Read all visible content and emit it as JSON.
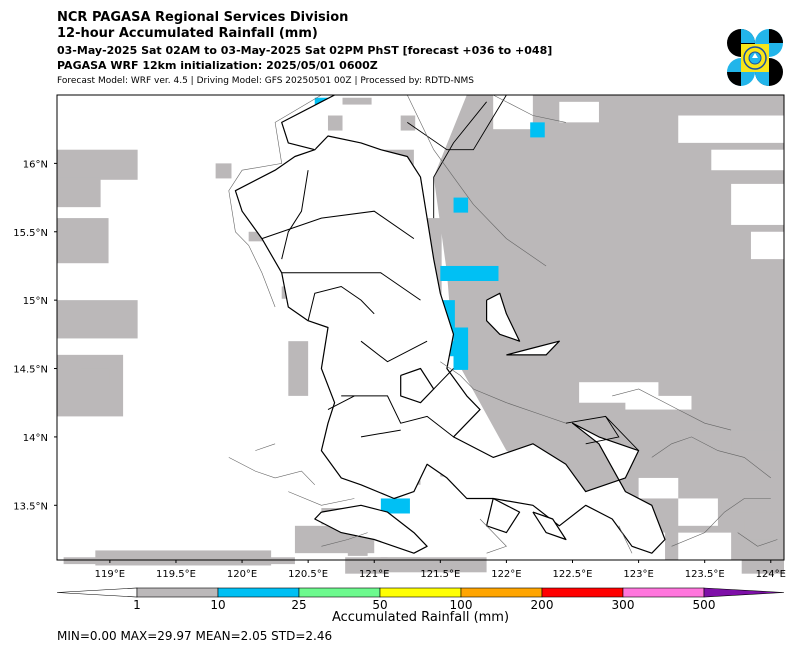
{
  "header": {
    "title": "NCR PAGASA Regional Services Division",
    "subtitle": "12-hour Accumulated Rainfall (mm)",
    "period": "03-May-2025 Sat 02AM to 03-May-2025 Sat 02PM PhST [forecast +036 to +048]",
    "init": "PAGASA WRF 12km initialization: 2025/05/01 0600Z",
    "model_info": "Forecast Model: WRF ver. 4.5 | Driving Model: GFS 20250501 00Z | Processed by: RDTD-NMS"
  },
  "logo": {
    "icon": "pagasa-logo-icon",
    "colors": [
      "#000000",
      "#22b5ea",
      "#f7e51a",
      "#1a4fa3"
    ]
  },
  "chart_data": {
    "type": "heatmap",
    "title": "12-hour Accumulated Rainfall (mm)",
    "xlim": [
      118.6,
      124.1
    ],
    "ylim": [
      13.1,
      16.5
    ],
    "x_ticks": [
      "119°E",
      "119.5°E",
      "120°E",
      "120.5°E",
      "121°E",
      "121.5°E",
      "122°E",
      "122.5°E",
      "123°E",
      "123.5°E",
      "124°E"
    ],
    "x_tick_values": [
      119,
      119.5,
      120,
      120.5,
      121,
      121.5,
      122,
      122.5,
      123,
      123.5,
      124
    ],
    "y_ticks": [
      "16°N",
      "15.5°N",
      "15°N",
      "14.5°N",
      "14°N",
      "13.5°N"
    ],
    "y_tick_values": [
      16,
      15.5,
      15,
      14.5,
      14,
      13.5
    ],
    "colorbar": {
      "label": "Accumulated Rainfall (mm)",
      "levels": [
        "1",
        "10",
        "25",
        "50",
        "100",
        "200",
        "300",
        "500"
      ],
      "colors": [
        "#ffffff",
        "#bbb8b9",
        "#00c0f4",
        "#6dfa8e",
        "#ffff04",
        "#ffa501",
        "#ff0000",
        "#ff76dd",
        "#7e0fa8"
      ]
    },
    "cell_deg": 0.11,
    "cells_light": [
      [
        118.6,
        16.1,
        0.61,
        0.22
      ],
      [
        118.6,
        15.9,
        0.33,
        0.22
      ],
      [
        118.6,
        15.6,
        0.39,
        0.33
      ],
      [
        118.6,
        15.0,
        0.61,
        0.28
      ],
      [
        118.6,
        14.6,
        0.5,
        0.45
      ],
      [
        118.78,
        14.5,
        0.22,
        0.11
      ],
      [
        118.65,
        13.12,
        1.75,
        0.05
      ],
      [
        118.89,
        13.17,
        1.33,
        0.11
      ],
      [
        119.8,
        16.0,
        0.12,
        0.11
      ],
      [
        120.05,
        15.5,
        0.22,
        0.07
      ],
      [
        120.3,
        15.1,
        0.08,
        0.09
      ],
      [
        120.35,
        14.7,
        0.15,
        0.4
      ],
      [
        120.9,
        16.1,
        0.12,
        0.11
      ],
      [
        121.0,
        16.0,
        0.1,
        0.11
      ],
      [
        121.05,
        16.1,
        0.25,
        0.11
      ],
      [
        121.05,
        15.9,
        0.22,
        0.11
      ],
      [
        121.2,
        16.35,
        0.11,
        0.11
      ],
      [
        120.65,
        16.35,
        0.11,
        0.11
      ],
      [
        120.76,
        16.48,
        0.22,
        0.05
      ],
      [
        121.4,
        15.6,
        0.11,
        0.8
      ],
      [
        121.4,
        14.75,
        0.11,
        0.3
      ],
      [
        121.5,
        13.85,
        0.25,
        0.14
      ],
      [
        121.2,
        13.75,
        0.15,
        0.1
      ],
      [
        120.6,
        13.48,
        0.3,
        0.12
      ],
      [
        120.4,
        13.35,
        0.6,
        0.2
      ],
      [
        120.78,
        13.12,
        0.32,
        0.12
      ],
      [
        120.95,
        13.12,
        0.4,
        0.08
      ],
      [
        121.05,
        13.12,
        0.8,
        0.11
      ],
      [
        120.8,
        13.25,
        0.15,
        0.12
      ],
      [
        123.47,
        14.05,
        0.61,
        0.1
      ],
      [
        123.7,
        14.0,
        0.4,
        0.1
      ],
      [
        123.85,
        13.9,
        0.25,
        0.1
      ],
      [
        123.63,
        13.55,
        0.47,
        0.1
      ],
      [
        123.8,
        13.4,
        0.3,
        0.15
      ],
      [
        123.78,
        13.12,
        0.32,
        0.12
      ]
    ],
    "cells_blue": [
      [
        120.55,
        16.48,
        0.11,
        0.05
      ],
      [
        122.18,
        16.3,
        0.11,
        0.11
      ],
      [
        121.2,
        15.95,
        0.1,
        0.11
      ],
      [
        121.6,
        15.75,
        0.11,
        0.11
      ],
      [
        121.5,
        15.25,
        0.44,
        0.11
      ],
      [
        121.5,
        15.0,
        0.11,
        0.25
      ],
      [
        121.6,
        14.8,
        0.11,
        0.3
      ],
      [
        121.5,
        14.7,
        0.11,
        0.11
      ],
      [
        121.6,
        14.6,
        0.11,
        0.11
      ],
      [
        121.6,
        13.75,
        0.11,
        0.11
      ],
      [
        122.05,
        13.65,
        0.11,
        0.11
      ],
      [
        121.05,
        13.55,
        0.22,
        0.11
      ]
    ],
    "cells_green": [
      [
        121.17,
        15.98,
        0.11,
        0.11
      ]
    ],
    "land_outlines": [
      [
        [
          121.05,
          16.1
        ],
        [
          121.25,
          16.05
        ],
        [
          121.35,
          15.9
        ],
        [
          121.4,
          15.6
        ],
        [
          121.45,
          15.3
        ],
        [
          121.5,
          15.05
        ],
        [
          121.55,
          14.9
        ],
        [
          121.6,
          14.75
        ],
        [
          121.55,
          14.5
        ],
        [
          121.7,
          14.3
        ],
        [
          121.8,
          14.2
        ],
        [
          121.6,
          14.0
        ],
        [
          121.9,
          13.85
        ],
        [
          122.2,
          13.95
        ],
        [
          122.45,
          13.8
        ],
        [
          122.6,
          13.6
        ],
        [
          122.9,
          13.7
        ],
        [
          123.0,
          13.9
        ],
        [
          122.7,
          14.0
        ],
        [
          122.5,
          14.1
        ],
        [
          122.7,
          13.95
        ],
        [
          122.9,
          13.6
        ],
        [
          123.1,
          13.5
        ],
        [
          123.2,
          13.25
        ],
        [
          123.1,
          13.15
        ],
        [
          122.95,
          13.2
        ],
        [
          122.8,
          13.4
        ],
        [
          122.6,
          13.5
        ],
        [
          122.4,
          13.35
        ],
        [
          122.2,
          13.5
        ],
        [
          121.9,
          13.55
        ],
        [
          121.7,
          13.55
        ],
        [
          121.55,
          13.7
        ],
        [
          121.4,
          13.8
        ],
        [
          121.3,
          13.6
        ],
        [
          121.15,
          13.55
        ],
        [
          120.9,
          13.65
        ],
        [
          120.75,
          13.7
        ],
        [
          120.6,
          13.9
        ],
        [
          120.65,
          14.1
        ],
        [
          120.7,
          14.25
        ],
        [
          120.6,
          14.5
        ],
        [
          120.65,
          14.8
        ],
        [
          120.5,
          14.85
        ],
        [
          120.35,
          14.95
        ],
        [
          120.3,
          15.2
        ],
        [
          120.15,
          15.45
        ],
        [
          120.0,
          15.65
        ],
        [
          119.95,
          15.8
        ],
        [
          120.25,
          15.95
        ],
        [
          120.4,
          16.05
        ],
        [
          120.55,
          16.1
        ],
        [
          120.65,
          16.2
        ],
        [
          120.9,
          16.15
        ],
        [
          121.05,
          16.1
        ]
      ],
      [
        [
          121.85,
          15.0
        ],
        [
          121.95,
          15.05
        ],
        [
          122.0,
          14.9
        ],
        [
          122.1,
          14.7
        ],
        [
          121.95,
          14.75
        ],
        [
          121.85,
          14.85
        ],
        [
          121.85,
          15.0
        ]
      ],
      [
        [
          121.2,
          14.45
        ],
        [
          121.35,
          14.5
        ],
        [
          121.45,
          14.35
        ],
        [
          121.35,
          14.25
        ],
        [
          121.2,
          14.3
        ],
        [
          121.2,
          14.45
        ]
      ],
      [
        [
          122.0,
          14.6
        ],
        [
          122.3,
          14.6
        ],
        [
          122.4,
          14.7
        ],
        [
          122.2,
          14.65
        ],
        [
          122.0,
          14.6
        ]
      ],
      [
        [
          120.6,
          13.45
        ],
        [
          120.9,
          13.5
        ],
        [
          121.1,
          13.45
        ],
        [
          121.3,
          13.3
        ],
        [
          121.4,
          13.2
        ],
        [
          121.3,
          13.15
        ],
        [
          121.0,
          13.25
        ],
        [
          120.75,
          13.3
        ],
        [
          120.55,
          13.4
        ],
        [
          120.6,
          13.45
        ]
      ],
      [
        [
          121.9,
          13.55
        ],
        [
          122.1,
          13.45
        ],
        [
          122.0,
          13.3
        ],
        [
          121.85,
          13.35
        ],
        [
          121.9,
          13.55
        ]
      ],
      [
        [
          122.2,
          13.45
        ],
        [
          122.3,
          13.3
        ],
        [
          122.45,
          13.25
        ],
        [
          122.35,
          13.4
        ],
        [
          122.2,
          13.45
        ]
      ],
      [
        [
          120.55,
          16.1
        ],
        [
          120.35,
          16.15
        ],
        [
          120.3,
          16.3
        ],
        [
          120.6,
          16.45
        ],
        [
          120.7,
          16.5
        ]
      ]
    ],
    "province_lines": [
      [
        [
          120.15,
          15.45
        ],
        [
          120.6,
          15.6
        ],
        [
          121.0,
          15.65
        ],
        [
          121.3,
          15.45
        ]
      ],
      [
        [
          120.5,
          15.95
        ],
        [
          120.45,
          15.65
        ],
        [
          120.35,
          15.5
        ],
        [
          120.3,
          15.3
        ]
      ],
      [
        [
          120.3,
          15.2
        ],
        [
          120.55,
          15.2
        ],
        [
          121.05,
          15.2
        ],
        [
          121.35,
          15.0
        ]
      ],
      [
        [
          120.5,
          14.85
        ],
        [
          120.55,
          15.05
        ],
        [
          120.75,
          15.1
        ],
        [
          120.9,
          15.0
        ],
        [
          121.0,
          14.9
        ]
      ],
      [
        [
          120.9,
          14.7
        ],
        [
          121.1,
          14.55
        ],
        [
          121.4,
          14.7
        ]
      ],
      [
        [
          120.75,
          14.3
        ],
        [
          121.1,
          14.3
        ],
        [
          121.2,
          14.1
        ],
        [
          121.4,
          14.15
        ],
        [
          121.6,
          14.0
        ]
      ],
      [
        [
          120.9,
          14.0
        ],
        [
          121.2,
          14.05
        ]
      ],
      [
        [
          120.65,
          14.2
        ],
        [
          120.85,
          14.3
        ]
      ],
      [
        [
          121.45,
          14.35
        ],
        [
          121.6,
          14.5
        ]
      ]
    ],
    "boundary_lines": [
      [
        [
          121.25,
          16.3
        ],
        [
          121.55,
          16.1
        ],
        [
          121.75,
          16.1
        ],
        [
          122.0,
          16.5
        ]
      ],
      [
        [
          121.85,
          16.45
        ],
        [
          121.6,
          16.15
        ],
        [
          121.45,
          15.9
        ],
        [
          121.45,
          15.6
        ]
      ],
      [
        [
          122.45,
          14.1
        ],
        [
          122.75,
          14.15
        ],
        [
          122.85,
          14.0
        ],
        [
          122.6,
          13.95
        ]
      ],
      [
        [
          122.75,
          14.15
        ],
        [
          123.0,
          13.9
        ]
      ]
    ],
    "coast_thin": [
      [
        [
          120.6,
          16.5
        ],
        [
          120.25,
          16.3
        ],
        [
          120.3,
          16.0
        ],
        [
          120.0,
          15.95
        ],
        [
          119.9,
          15.8
        ],
        [
          119.95,
          15.5
        ],
        [
          120.05,
          15.4
        ],
        [
          120.15,
          15.2
        ],
        [
          120.25,
          14.95
        ]
      ],
      [
        [
          121.25,
          16.5
        ],
        [
          121.35,
          16.3
        ],
        [
          121.45,
          16.1
        ],
        [
          121.6,
          15.9
        ],
        [
          121.75,
          15.7
        ],
        [
          122.0,
          15.45
        ],
        [
          122.3,
          15.25
        ]
      ],
      [
        [
          121.9,
          16.5
        ],
        [
          122.2,
          16.35
        ],
        [
          122.45,
          16.3
        ]
      ],
      [
        [
          121.5,
          14.55
        ],
        [
          121.65,
          14.45
        ],
        [
          121.75,
          14.35
        ],
        [
          122.0,
          14.25
        ],
        [
          122.3,
          14.15
        ],
        [
          122.45,
          14.1
        ]
      ],
      [
        [
          120.35,
          13.6
        ],
        [
          120.6,
          13.5
        ],
        [
          120.85,
          13.55
        ]
      ],
      [
        [
          120.6,
          13.2
        ],
        [
          120.8,
          13.25
        ],
        [
          120.95,
          13.3
        ]
      ],
      [
        [
          119.9,
          13.85
        ],
        [
          120.1,
          13.75
        ],
        [
          120.25,
          13.7
        ],
        [
          120.45,
          13.75
        ],
        [
          120.55,
          13.65
        ]
      ],
      [
        [
          120.1,
          13.9
        ],
        [
          120.25,
          13.95
        ]
      ],
      [
        [
          121.8,
          13.4
        ],
        [
          122.0,
          13.2
        ],
        [
          121.85,
          13.15
        ]
      ],
      [
        [
          122.8,
          14.3
        ],
        [
          123.0,
          14.35
        ],
        [
          123.3,
          14.2
        ],
        [
          123.5,
          14.1
        ],
        [
          123.7,
          14.05
        ]
      ],
      [
        [
          123.1,
          13.85
        ],
        [
          123.25,
          13.95
        ],
        [
          123.4,
          14.0
        ],
        [
          123.6,
          13.9
        ],
        [
          123.8,
          13.85
        ],
        [
          124.0,
          13.7
        ]
      ],
      [
        [
          123.25,
          13.2
        ],
        [
          123.5,
          13.3
        ],
        [
          123.65,
          13.45
        ],
        [
          123.8,
          13.55
        ],
        [
          124.0,
          13.55
        ]
      ],
      [
        [
          123.75,
          13.3
        ],
        [
          123.9,
          13.2
        ],
        [
          124.05,
          13.25
        ]
      ],
      [
        [
          122.95,
          13.15
        ],
        [
          122.85,
          13.35
        ]
      ]
    ]
  },
  "footer": {
    "colorbar_label": "Accumulated Rainfall (mm)",
    "stats": "MIN=0.00   MAX=29.97   MEAN=2.05   STD=2.46"
  }
}
